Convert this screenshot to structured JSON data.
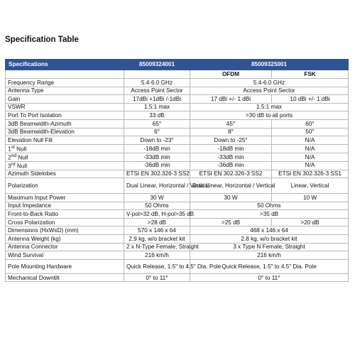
{
  "title": "Specification Table",
  "header": {
    "label": "Specifications",
    "model_a": "85009324001",
    "model_b": "85009325001",
    "sub_b1": "OFDM",
    "sub_b2": "FSK"
  },
  "rows": {
    "freq": {
      "label": "Frequency Range",
      "a": "5.4-6.0 GHz",
      "b": "5.4-6.0 GHz"
    },
    "antenna_type": {
      "label": "Antenna Type",
      "a": "Access Point Sector",
      "b": "Access Point Sector"
    },
    "gain": {
      "label": "Gain",
      "a": "17dBi +1dBi /-1dBi",
      "b1": "17 dBi  +/- 1 dBi",
      "b2": "10 dBi  +/- 1 dBi"
    },
    "vswr": {
      "label": "VSWR",
      "a": "1.5:1 max",
      "b": "1.5:1 max"
    },
    "isolation": {
      "label": "Port To Port Isolation",
      "a": "33 dB",
      "b": ">30 dB to all ports"
    },
    "bw_az": {
      "label": "3dB Beamwidth-Azimuth",
      "a": "65°",
      "b1": "45°",
      "b2": "60°"
    },
    "bw_el": {
      "label": "3dB Beamwidth-Elevation",
      "a": "6°",
      "b1": "8°",
      "b2": "50°"
    },
    "null_fill": {
      "label": "Elevation Null Fill",
      "a": "Down to -23°",
      "b1": "Down to -25°",
      "b2": "N/A"
    },
    "null1": {
      "num": "1",
      "sup": "st",
      "rest": " Null",
      "a": "-18dB min",
      "b1": "-18dB min",
      "b2": "N/A"
    },
    "null2": {
      "num": "2",
      "sup": "nd",
      "rest": " Null",
      "a": "-33dB min",
      "b1": "-33dB min",
      "b2": "N/A"
    },
    "null3": {
      "num": "3",
      "sup": "rd",
      "rest": " Null",
      "a": "-36dB min",
      "b1": "-36dB min",
      "b2": "N/A"
    },
    "sidelobes": {
      "label": "Azimuth Sidelobes",
      "a": "ETSI EN 302.326-3 SS2",
      "b1": "ETSI EN 302.326-3 SS2",
      "b2": "ETSI EN 302.326-3 SS1"
    },
    "polarization": {
      "label": "Polarization",
      "a": "Dual Linear, Horizontal / Vertical",
      "b1": "Dual Linear, Horizontal / Vertical",
      "b2": "Linear, Vertical"
    },
    "max_power": {
      "label": "Maximum Input Power",
      "a": "30 W",
      "b1": "30 W",
      "b2": "10 W"
    },
    "impedance": {
      "label": "Input Impedance",
      "a": "50 Ohms",
      "b": "50 Ohms"
    },
    "ftb": {
      "label": "Front-to-Back Ratio",
      "a": "V-pol>32 dB, H-pol>35 dB",
      "b": ">35 dB"
    },
    "cross_pol": {
      "label": "Cross Polarization",
      "a": ">28 dB",
      "b1": ">25 dB",
      "b2": ">20 dB"
    },
    "dimensions": {
      "label": "Dimensions (HxWxD) (mm)",
      "a": "570 x 146 x 64",
      "b": "468 x 146 x 64"
    },
    "weight": {
      "label": "Antenna Weight (kg)",
      "a": "2.9 kg, w/o bracket kit",
      "b": "2.8 kg, w/o bracket kit"
    },
    "connector": {
      "label": "Antenna Connector",
      "a": "2 x N-Type Female, Straight",
      "b": "3 x Type N Female, Straight"
    },
    "wind": {
      "label": "Wind Survival",
      "a": "216 km/h",
      "b": "216 km/h"
    },
    "mounting": {
      "label": "Pole Mounting Hardware",
      "a": "Quick Release, 1.5\" to 4.5\" Dia. Pole",
      "b": "Quick Release, 1.5\" to 4.5\" Dia. Pole"
    },
    "downtilt": {
      "label": "Mechanical Downtilt",
      "a": "0°  to 11°",
      "b": "0°  to 11°"
    }
  }
}
